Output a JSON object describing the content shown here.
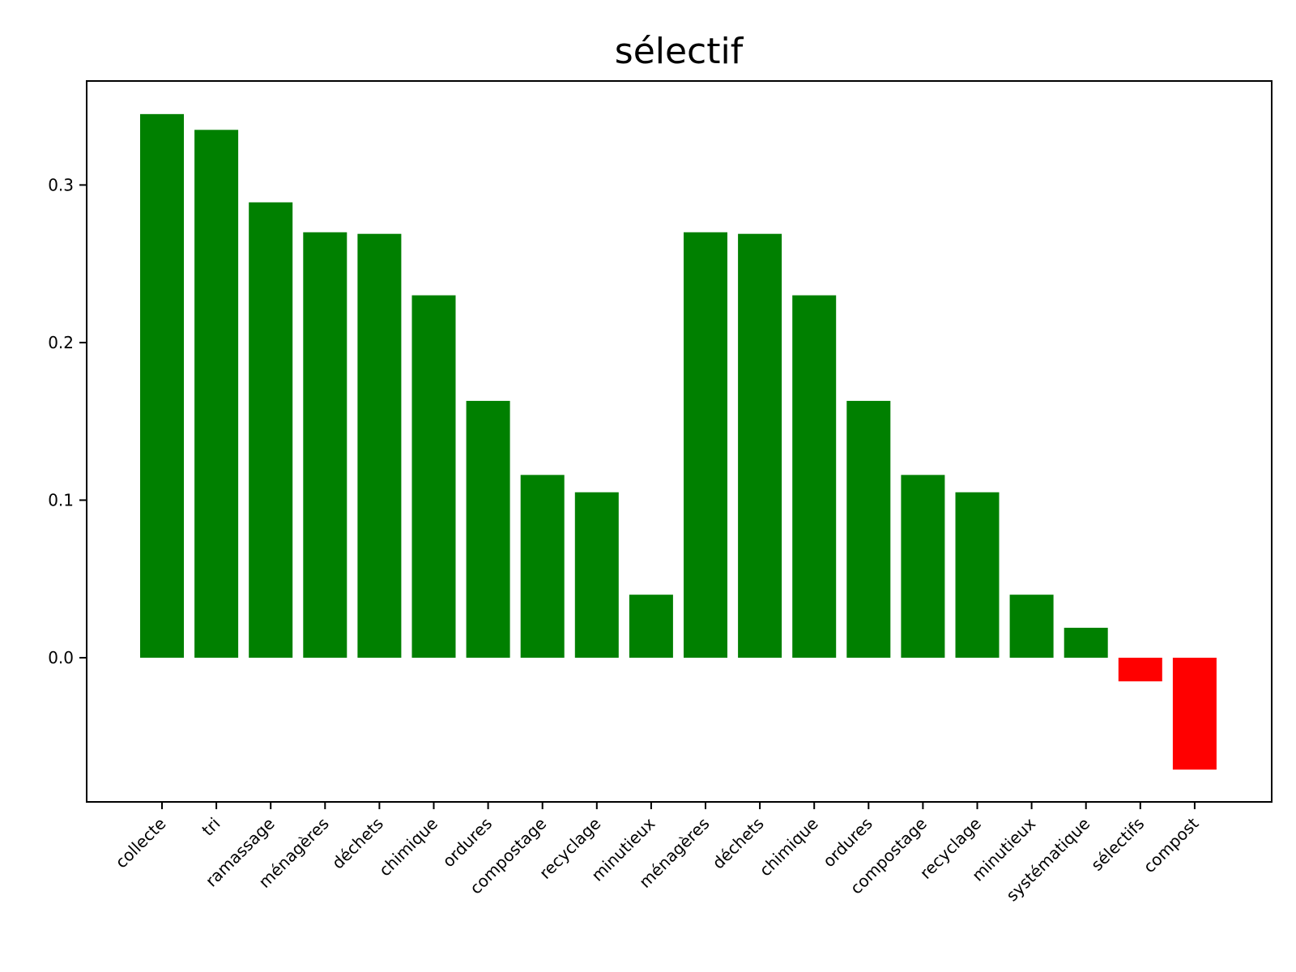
{
  "chart_data": {
    "type": "bar",
    "title": "sélectif",
    "xlabel": "",
    "ylabel": "",
    "categories": [
      "collecte",
      "tri",
      "ramassage",
      "ménagères",
      "déchets",
      "chimique",
      "ordures",
      "compostage",
      "recyclage",
      "minutieux",
      "ménagères",
      "déchets",
      "chimique",
      "ordures",
      "compostage",
      "recyclage",
      "minutieux",
      "systématique",
      "sélectifs",
      "compost"
    ],
    "values": [
      0.345,
      0.335,
      0.289,
      0.27,
      0.269,
      0.23,
      0.163,
      0.116,
      0.105,
      0.04,
      0.27,
      0.269,
      0.23,
      0.163,
      0.116,
      0.105,
      0.04,
      0.019,
      -0.015,
      -0.071
    ],
    "ylim": [
      -0.0915,
      0.366
    ],
    "yticks": [
      0.0,
      0.1,
      0.2,
      0.3
    ],
    "ytick_labels": [
      "0.0",
      "0.1",
      "0.2",
      "0.3"
    ],
    "grid": false,
    "colors": {
      "positive": "#008000",
      "negative": "#ff0000",
      "axis": "#000000"
    }
  }
}
